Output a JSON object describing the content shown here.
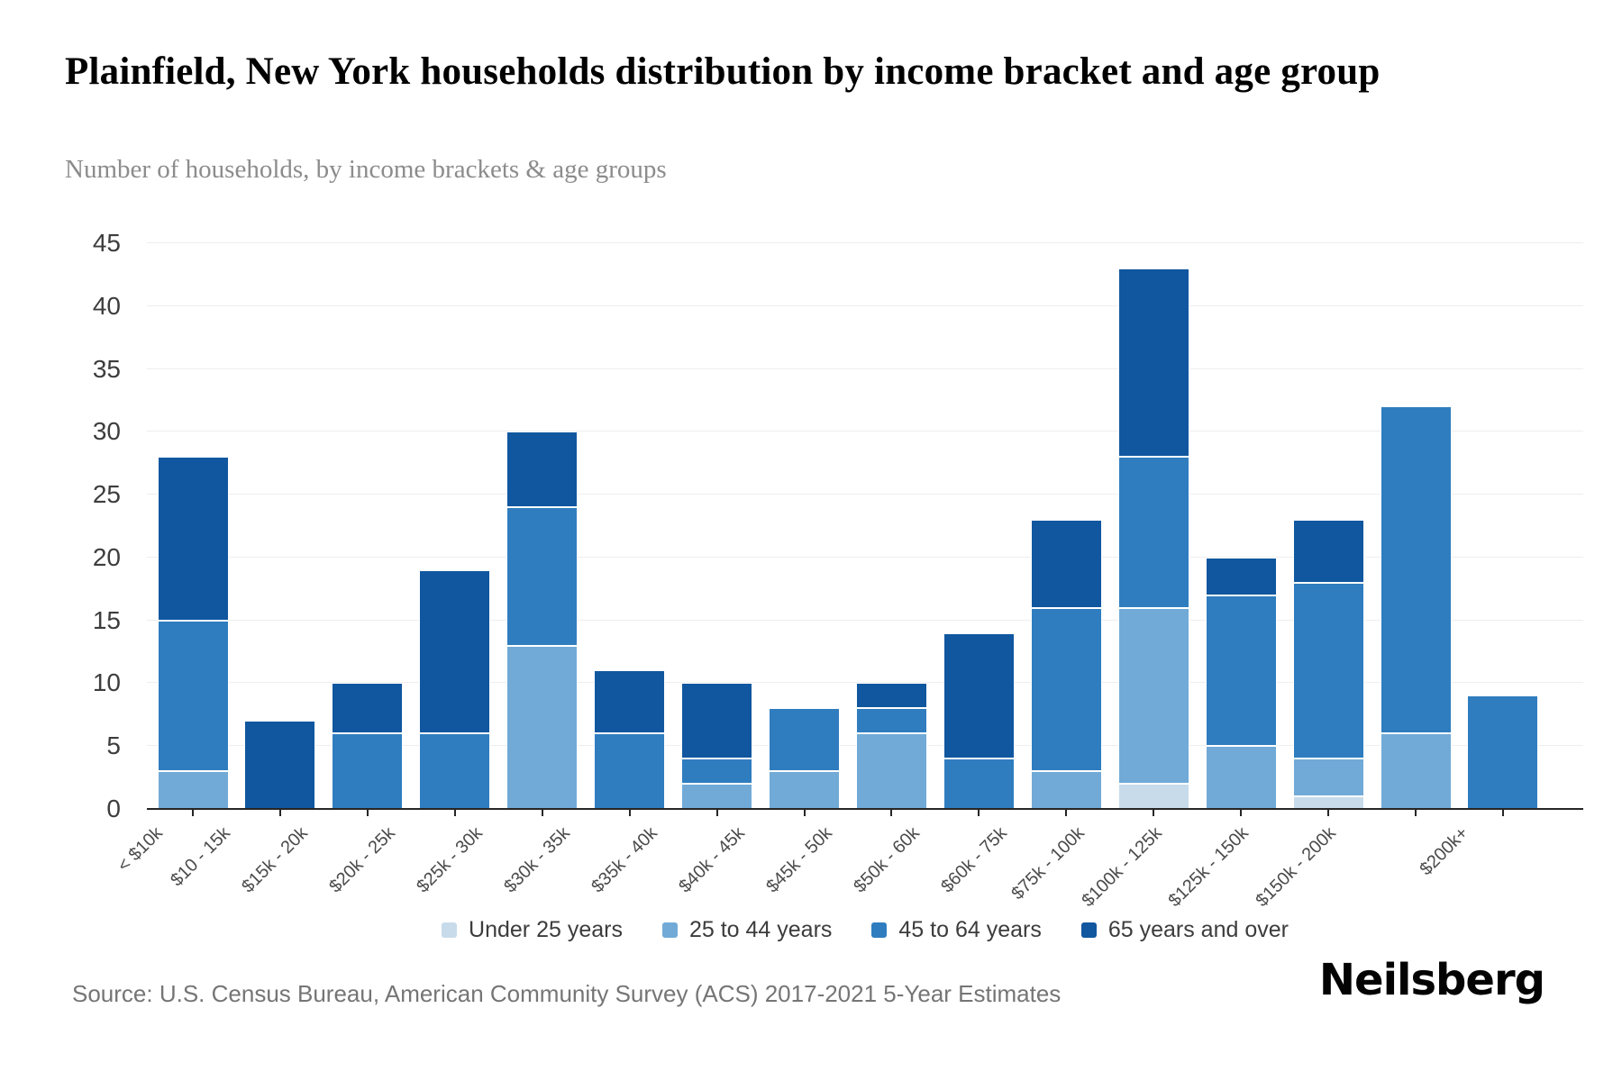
{
  "chart": {
    "title": "Plainfield, New York households distribution by income bracket and age group",
    "subtitle": "Number of households, by income brackets & age groups",
    "source": "Source: U.S. Census Bureau, American Community Survey (ACS) 2017-2021 5-Year Estimates",
    "brand": "Neilsberg"
  },
  "chart_data": {
    "type": "bar",
    "stacked": true,
    "title": "Plainfield, New York households distribution by income bracket and age group",
    "subtitle": "Number of households, by income brackets & age groups",
    "xlabel": "",
    "ylabel": "Number of households",
    "ylim": [
      0,
      45
    ],
    "ytick_step": 5,
    "grid": "horizontal",
    "legend_position": "bottom",
    "categories": [
      "< $10k",
      "$10 - 15k",
      "$15k - 20k",
      "$20k - 25k",
      "$25k - 30k",
      "$30k - 35k",
      "$35k - 40k",
      "$40k - 45k",
      "$45k - 50k",
      "$50k - 60k",
      "$60k - 75k",
      "$75k - 100k",
      "$100k - 125k",
      "$125k - 150k",
      "$150k - 200k",
      "$200k+"
    ],
    "series": [
      {
        "name": "Under 25 years",
        "color": "#c7dbeb",
        "values": [
          0,
          0,
          0,
          0,
          0,
          0,
          0,
          0,
          0,
          0,
          0,
          2,
          0,
          1,
          0,
          0
        ]
      },
      {
        "name": "25 to 44 years",
        "color": "#71aad7",
        "values": [
          3,
          0,
          0,
          0,
          13,
          0,
          2,
          3,
          6,
          0,
          3,
          14,
          5,
          3,
          6,
          0
        ]
      },
      {
        "name": "45 to 64 years",
        "color": "#2f7dbf",
        "values": [
          12,
          0,
          6,
          6,
          11,
          6,
          2,
          5,
          2,
          4,
          13,
          12,
          12,
          14,
          26,
          9
        ]
      },
      {
        "name": "65 years and over",
        "color": "#10579f",
        "values": [
          13,
          7,
          4,
          13,
          6,
          5,
          6,
          0,
          2,
          10,
          7,
          15,
          3,
          5,
          0,
          0
        ]
      }
    ],
    "totals": [
      28,
      7,
      10,
      19,
      30,
      11,
      10,
      8,
      10,
      14,
      23,
      43,
      20,
      23,
      32,
      9
    ]
  }
}
